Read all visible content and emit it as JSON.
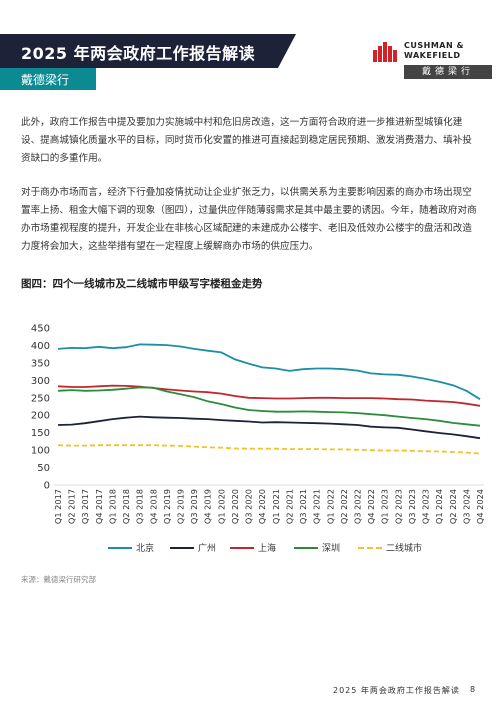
{
  "header": {
    "title": "2025 年两会政府工作报告解读",
    "subtitle": "戴德梁行",
    "logo_text_line1": "CUSHMAN &",
    "logo_text_line2": "WAKEFIELD",
    "logo_cn": "戴德梁行"
  },
  "body": {
    "paragraph1": "此外，政府工作报告中提及要加力实施城中村和危旧房改造，这一方面符合政府进一步推进新型城镇化建设、提高城镇化质量水平的目标，同时货币化安置的推进可直接起到稳定居民预期、激发消费潜力、填补投资缺口的多重作用。",
    "paragraph2": "对于商办市场而言，经济下行叠加疫情扰动让企业扩张乏力，以供需关系为主要影响因素的商办市场出现空置率上扬、租金大幅下调的现象（图四），过量供应伴随薄弱需求是其中最主要的诱因。今年，随着政府对商办市场重视程度的提升，开发企业在非核心区域配建的未建成办公楼宇、老旧及低效办公楼宇的盘活和改造力度将会加大，这些举措有望在一定程度上缓解商办市场的供应压力。"
  },
  "figure": {
    "title": "图四：四个一线城市及二线城市甲级写字楼租金走势",
    "source": "来源：戴德梁行研究部"
  },
  "chart_data": {
    "type": "line",
    "title": "图四：四个一线城市及二线城市甲级写字楼租金走势",
    "xlabel": "",
    "ylabel": "",
    "ylim": [
      0,
      450
    ],
    "yticks": [
      0,
      50,
      100,
      150,
      200,
      250,
      300,
      350,
      400,
      450
    ],
    "grid": false,
    "legend_position": "bottom",
    "categories": [
      "Q1 2017",
      "Q2 2017",
      "Q3 2017",
      "Q4 2017",
      "Q1 2018",
      "Q2 2018",
      "Q3 2018",
      "Q4 2018",
      "Q1 2019",
      "Q2 2019",
      "Q3 2019",
      "Q4 2019",
      "Q1 2020",
      "Q2 2020",
      "Q3 2020",
      "Q4 2020",
      "Q1 2021",
      "Q2 2021",
      "Q3 2021",
      "Q4 2021",
      "Q1 2022",
      "Q2 2022",
      "Q3 2022",
      "Q4 2022",
      "Q1 2023",
      "Q2 2023",
      "Q3 2023",
      "Q4 2023",
      "Q1 2024",
      "Q2 2024",
      "Q3 2024",
      "Q4 2024"
    ],
    "series": [
      {
        "name": "北京",
        "color": "#1b8fa3",
        "values": [
          390,
          393,
          392,
          396,
          392,
          395,
          403,
          402,
          401,
          397,
          390,
          385,
          380,
          360,
          348,
          337,
          334,
          327,
          332,
          334,
          334,
          332,
          328,
          320,
          317,
          316,
          311,
          304,
          296,
          286,
          270,
          246
        ]
      },
      {
        "name": "广州",
        "color": "#1d2238",
        "values": [
          172,
          173,
          177,
          183,
          189,
          193,
          196,
          194,
          193,
          192,
          190,
          189,
          186,
          184,
          182,
          179,
          180,
          179,
          178,
          177,
          176,
          174,
          172,
          167,
          165,
          164,
          159,
          154,
          149,
          145,
          140,
          134
        ]
      },
      {
        "name": "上海",
        "color": "#c0282c",
        "values": [
          283,
          281,
          281,
          283,
          285,
          284,
          282,
          278,
          274,
          271,
          268,
          266,
          262,
          255,
          250,
          249,
          248,
          248,
          249,
          250,
          250,
          249,
          249,
          249,
          248,
          246,
          245,
          242,
          240,
          238,
          233,
          227
        ]
      },
      {
        "name": "深圳",
        "color": "#2e8b3a",
        "values": [
          270,
          272,
          270,
          271,
          273,
          276,
          280,
          279,
          268,
          260,
          252,
          240,
          232,
          222,
          215,
          212,
          210,
          210,
          211,
          210,
          209,
          208,
          206,
          203,
          200,
          196,
          192,
          189,
          184,
          178,
          174,
          170
        ]
      },
      {
        "name": "二线城市",
        "color": "#f2c12e",
        "values": [
          114,
          113,
          113,
          114,
          114,
          114,
          114,
          114,
          113,
          112,
          110,
          108,
          107,
          105,
          104,
          104,
          104,
          103,
          103,
          103,
          102,
          102,
          101,
          100,
          99,
          99,
          98,
          97,
          96,
          95,
          93,
          90
        ]
      }
    ]
  },
  "footer": {
    "text": "2025 年两会政府工作报告解读",
    "page": "8"
  }
}
